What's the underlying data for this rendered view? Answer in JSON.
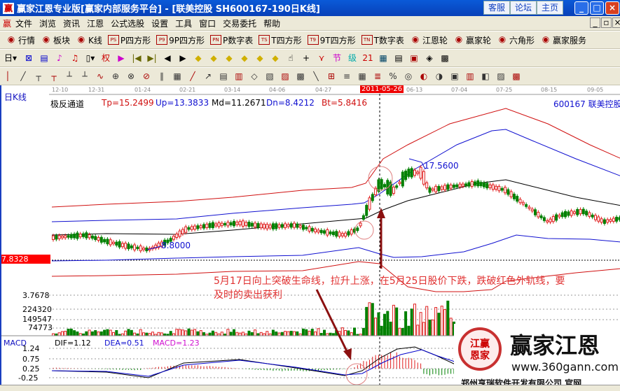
{
  "window": {
    "title": "赢家江恩专业版[赢家内部服务平台] - [联美控股   SH600167-190日K线]",
    "buttons": [
      "客服",
      "论坛",
      "主页"
    ]
  },
  "menu": [
    "文件",
    "浏览",
    "资讯",
    "江恩",
    "公式选股",
    "设置",
    "工具",
    "窗口",
    "交易委托",
    "帮助"
  ],
  "toolbar1": [
    {
      "icon": "grid-icon",
      "label": "行情"
    },
    {
      "icon": "blocks-icon",
      "label": "板块"
    },
    {
      "icon": "candles-icon",
      "label": "K线"
    },
    {
      "icon": "PS",
      "label": "P四方形"
    },
    {
      "icon": "P9",
      "label": "9P四方形"
    },
    {
      "icon": "PN",
      "label": "P数字表"
    },
    {
      "icon": "TS",
      "label": "T四方形"
    },
    {
      "icon": "T9",
      "label": "9T四方形"
    },
    {
      "icon": "TN",
      "label": "T数字表"
    },
    {
      "icon": "wheel-icon",
      "label": "江恩轮"
    },
    {
      "icon": "wheel-icon",
      "label": "赢家轮"
    },
    {
      "icon": "hexagon-icon",
      "label": "六角形"
    },
    {
      "icon": "dollar-icon",
      "label": "赢家服务"
    }
  ],
  "toolbar2": {
    "period": "日"
  },
  "chart": {
    "period_label": "日K线",
    "dates": [
      "12-10",
      "12-31",
      "01-24",
      "02-21",
      "03-14",
      "04-06",
      "04-27",
      "2011-05-26",
      "06-13",
      "07-04",
      "07-25",
      "08-15",
      "09-05"
    ],
    "indicator": {
      "name": "极反通道",
      "tp": "Tp=15.2499",
      "up": "Up=13.3833",
      "md": "Md=11.2671",
      "dn": "Dn=8.4212",
      "bt": "Bt=5.8416"
    },
    "stock": "600167 联美控股",
    "high_label": "17.5600",
    "low_label": "8.8000",
    "cursor_price": "7.8328",
    "annotation_line1": "5月17日向上突破生命线，拉升上涨，在5月25日股价下跌，跌破红色外轨线，要",
    "annotation_line2": "及时的卖出获利",
    "volume_axis": [
      "3.7678",
      "224320",
      "149547",
      "74773"
    ],
    "macd": {
      "name": "MACD",
      "dif": "DIF=1.12",
      "dea": "DEA=0.51",
      "macd": "MACD=1.23",
      "axis": [
        "1.24",
        "0.75",
        "0.25",
        "-0.25"
      ]
    },
    "colors": {
      "up": "#e02020",
      "down": "#008000",
      "band_outer": "#d01010",
      "band_inner": "#1010d0",
      "mid": "#000000"
    }
  },
  "watermark": {
    "brand": "赢家江恩",
    "url": "www.360gann.com",
    "company": "郑州亨瑞软件开发有限公司 官网",
    "seal": "江赢恩家"
  }
}
